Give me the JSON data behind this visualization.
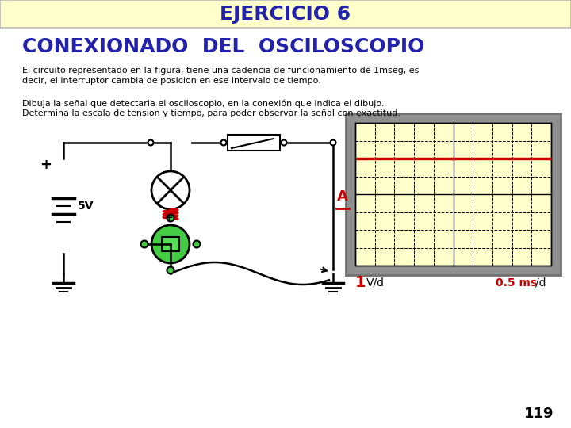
{
  "title": "EJERCICIO 6",
  "title_bg": "#FFFFCC",
  "title_color": "#2222AA",
  "subtitle": "CONEXIONADO  DEL  OSCILOSCOPIO",
  "subtitle_color": "#2222AA",
  "body_bg": "#FFFFFF",
  "text1a": "El circuito representado en la figura, tiene una cadencia de funcionamiento de 1mseg, es",
  "text1b": "decir, el interruptor cambia de posicion en ese intervalo de tiempo.",
  "text2a": "Dibuja la señal que detectaria el osciloscopio, en la conexión que indica el dibujo.",
  "text2b": "Determina la escala de tension y tiempo, para poder observar la señal con exactitud.",
  "text_color": "#000000",
  "page_number": "119",
  "osc_bg": "#FFFFCC",
  "osc_signal_color": "#CC0000",
  "osc_label_color": "#CC0000",
  "battery_voltage": "5V",
  "a_label": "A"
}
